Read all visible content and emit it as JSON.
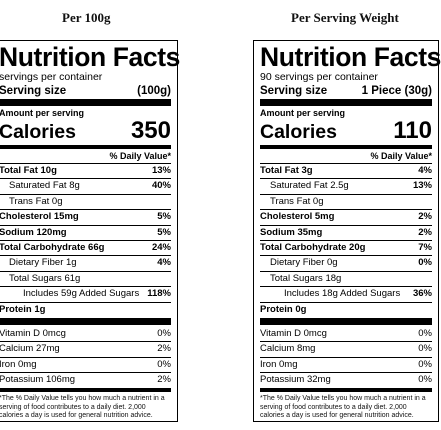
{
  "headings": {
    "left": "Per 100g",
    "right": "Per Serving Weight"
  },
  "panels": [
    {
      "title": "Nutrition Facts",
      "servings_per_container": "servings per container",
      "serving_size_label": "Serving size",
      "serving_size_value": "(100g)",
      "amount_per_serving": "Amount per serving",
      "calories_label": "Calories",
      "calories_value": "350",
      "dv_header": "% Daily Value*",
      "total_fat": "Total Fat 10g",
      "total_fat_dv": "13%",
      "sat_fat": "Saturated Fat 8g",
      "sat_fat_dv": "40%",
      "trans_fat": "Trans Fat 0g",
      "cholesterol": "Cholesterol 15mg",
      "cholesterol_dv": "5%",
      "sodium": "Sodium 120mg",
      "sodium_dv": "5%",
      "carbs": "Total Carbohydrate 66g",
      "carbs_dv": "24%",
      "fiber": "Dietary Fiber 1g",
      "fiber_dv": "4%",
      "sugars": "Total Sugars 61g",
      "added_sugars": "Includes 59g Added Sugars",
      "added_sugars_dv": "118%",
      "protein": "Protein 1g",
      "vitd": "Vitamin D 0mcg",
      "vitd_dv": "0%",
      "calcium": "Calcium 27mg",
      "calcium_dv": "2%",
      "iron": "Iron 0mg",
      "iron_dv": "0%",
      "potassium": "Potassium 106mg",
      "potassium_dv": "2%",
      "footnote": "*The % Daily Value tells you how much a nutrient in a serving of food contributes to a daily diet. 2,000 calories a day is used for general nutrition advice."
    },
    {
      "title": "Nutrition Facts",
      "servings_per_container": "90 servings per container",
      "serving_size_label": "Serving size",
      "serving_size_value": "1 Piece (30g)",
      "amount_per_serving": "Amount per serving",
      "calories_label": "Calories",
      "calories_value": "110",
      "dv_header": "% Daily Value*",
      "total_fat": "Total Fat 3g",
      "total_fat_dv": "4%",
      "sat_fat": "Saturated Fat 2.5g",
      "sat_fat_dv": "13%",
      "trans_fat": "Trans Fat 0g",
      "cholesterol": "Cholesterol 5mg",
      "cholesterol_dv": "2%",
      "sodium": "Sodium 35mg",
      "sodium_dv": "2%",
      "carbs": "Total Carbohydrate 20g",
      "carbs_dv": "7%",
      "fiber": "Dietary Fiber 0g",
      "fiber_dv": "0%",
      "sugars": "Total Sugars 18g",
      "added_sugars": "Includes 18g Added Sugars",
      "added_sugars_dv": "36%",
      "protein": "Protein 0g",
      "vitd": "Vitamin D 0mcg",
      "vitd_dv": "0%",
      "calcium": "Calcium 8mg",
      "calcium_dv": "0%",
      "iron": "Iron 0mg",
      "iron_dv": "0%",
      "potassium": "Potassium 32mg",
      "potassium_dv": "0%",
      "footnote": "*The % Daily Value tells you how much a nutrient in a serving of food contributes to a daily diet. 2,000 calories a day is used for general nutrition advice."
    }
  ]
}
